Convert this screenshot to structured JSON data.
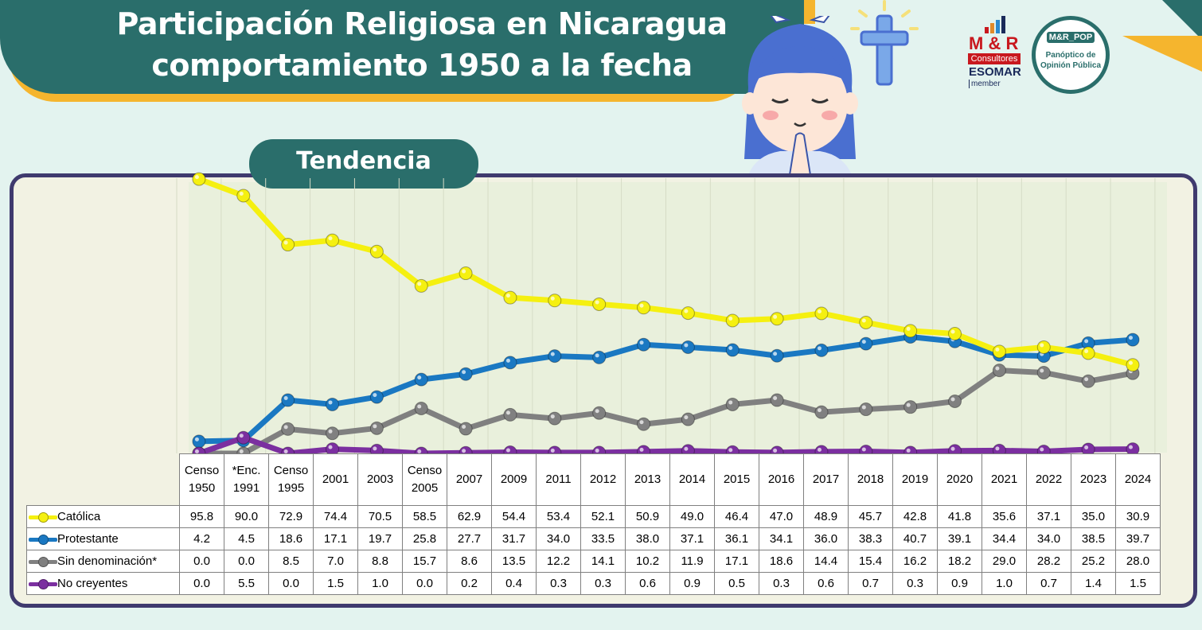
{
  "header": {
    "title_line1": "Participación Religiosa en Nicaragua",
    "title_line2": "comportamiento 1950 a la fecha",
    "section_tab": "Tendencia"
  },
  "logos": {
    "mr_name": "M & R",
    "mr_sub": "Consultores",
    "esomar": "ESOMAR",
    "esomar_member": "member",
    "pop_code": "M&R_POP",
    "pop_line1": "Panóptico de",
    "pop_line2": "Opinión Pública"
  },
  "colors": {
    "catolica": "#f5f010",
    "protestante": "#1a78c2",
    "sin_denominacion": "#808080",
    "no_creyentes": "#7b2fa0",
    "banner": "#2a6e6b",
    "frame": "#3f3a6e",
    "accent": "#f5b52e"
  },
  "chart_data": {
    "type": "line",
    "title": "",
    "xlabel": "",
    "ylabel": "",
    "ylim": [
      0,
      100
    ],
    "grid": "vertical",
    "legend": "table-below",
    "categories": [
      [
        "Censo",
        "1950"
      ],
      [
        "*Enc.",
        "1991"
      ],
      [
        "Censo",
        "1995"
      ],
      [
        "2001"
      ],
      [
        "2003"
      ],
      [
        "Censo",
        "2005"
      ],
      [
        "2007"
      ],
      [
        "2009"
      ],
      [
        "2011"
      ],
      [
        "2012"
      ],
      [
        "2013"
      ],
      [
        "2014"
      ],
      [
        "2015"
      ],
      [
        "2016"
      ],
      [
        "2017"
      ],
      [
        "2018"
      ],
      [
        "2019"
      ],
      [
        "2020"
      ],
      [
        "2021"
      ],
      [
        "2022"
      ],
      [
        "2023"
      ],
      [
        "2024"
      ]
    ],
    "series": [
      {
        "name": "Católica",
        "color_key": "catolica",
        "labels": [
          "95.8",
          "90.0",
          "72.9",
          "74.4",
          "70.5",
          "58.5",
          "62.9",
          "54.4",
          "53.4",
          "52.1",
          "50.9",
          "49.0",
          "46.4",
          "47.0",
          "48.9",
          "45.7",
          "42.8",
          "41.8",
          "35.6",
          "37.1",
          "35.0",
          "30.9"
        ],
        "values": [
          95.8,
          90.0,
          72.9,
          74.4,
          70.5,
          58.5,
          62.9,
          54.4,
          53.4,
          52.1,
          50.9,
          49.0,
          46.4,
          47.0,
          48.9,
          45.7,
          42.8,
          41.8,
          35.6,
          37.1,
          35.0,
          30.9
        ]
      },
      {
        "name": "Protestante",
        "color_key": "protestante",
        "labels": [
          "4.2",
          "4.5",
          "18.6",
          "17.1",
          "19.7",
          "25.8",
          "27.7",
          "31.7",
          "34.0",
          "33.5",
          "38.0",
          "37.1",
          "36.1",
          "34.1",
          "36.0",
          "38.3",
          "40.7",
          "39.1",
          "34.4",
          "34.0",
          "38.5",
          "39.7"
        ],
        "values": [
          4.2,
          4.5,
          18.6,
          17.1,
          19.7,
          25.8,
          27.7,
          31.7,
          34.0,
          33.5,
          38.0,
          37.1,
          36.1,
          34.1,
          36.0,
          38.3,
          40.7,
          39.1,
          34.4,
          34.0,
          38.5,
          39.7
        ]
      },
      {
        "name": "Sin denominación*",
        "color_key": "sin_denominacion",
        "labels": [
          "0.0",
          "0.0",
          "8.5",
          "7.0",
          "8.8",
          "15.7",
          "8.6",
          "13.5",
          "12.2",
          "14.1",
          "10.2",
          "11.9",
          "17.1",
          "18.6",
          "14.4",
          "15.4",
          "16.2",
          "18.2",
          "29.0",
          "28.2",
          "25.2",
          "28.0"
        ],
        "values": [
          0.0,
          0.0,
          8.5,
          7.0,
          8.8,
          15.7,
          8.6,
          13.5,
          12.2,
          14.1,
          10.2,
          11.9,
          17.1,
          18.6,
          14.4,
          15.4,
          16.2,
          18.2,
          29.0,
          28.2,
          25.2,
          28.0
        ]
      },
      {
        "name": "No creyentes",
        "color_key": "no_creyentes",
        "labels": [
          "0.0",
          "5.5",
          "0.0",
          "1.5",
          "1.0",
          "0.0",
          "0.2",
          "0.4",
          "0.3",
          "0.3",
          "0.6",
          "0.9",
          "0.5",
          "0.3",
          "0.6",
          "0.7",
          "0.3",
          "0.9",
          "1.0",
          "0.7",
          "1.4",
          "1.5"
        ],
        "values": [
          0.0,
          5.5,
          0.0,
          1.5,
          1.0,
          0.0,
          0.2,
          0.4,
          0.3,
          0.3,
          0.6,
          0.9,
          0.5,
          0.3,
          0.6,
          0.7,
          0.3,
          0.9,
          1.0,
          0.7,
          1.4,
          1.5
        ]
      }
    ]
  }
}
